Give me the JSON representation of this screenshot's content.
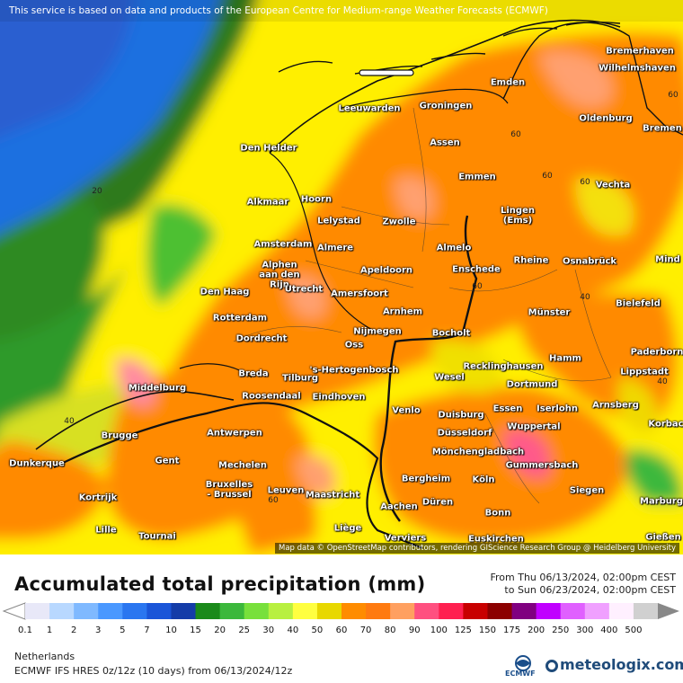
{
  "banner": "This service is based on data and products of the European Centre for Medium-range Weather Forecasts (ECMWF)",
  "attribution": "Map data © OpenStreetMap contributors, rendering GIScience Research Group @ Heidelberg University",
  "title": "Accumulated total precipitation (mm)",
  "date_from": "From Thu 06/13/2024, 02:00pm CEST",
  "date_to": "to Sun 06/23/2024, 02:00pm CEST",
  "region": "Netherlands",
  "model_line": "ECMWF IFS HRES 0z/12z (10 days) from 06/13/2024/12z",
  "logo_text": "meteologix.com",
  "ecmwf_text": "ECMWF",
  "legend": {
    "ticks": [
      "0.1",
      "1",
      "2",
      "3",
      "5",
      "7",
      "10",
      "15",
      "20",
      "25",
      "30",
      "40",
      "50",
      "60",
      "70",
      "80",
      "90",
      "100",
      "125",
      "150",
      "175",
      "200",
      "250",
      "300",
      "400",
      "500"
    ],
    "colors": [
      "#e8e8f8",
      "#b8d8ff",
      "#7fb9ff",
      "#4a98ff",
      "#2a76f0",
      "#1a55d8",
      "#143ca8",
      "#1a8a1a",
      "#3cb83c",
      "#78e03c",
      "#b8f040",
      "#ffff40",
      "#e8d800",
      "#ff8c00",
      "#ff7a10",
      "#ffa060",
      "#ff5080",
      "#ff2050",
      "#c80000",
      "#8c0000",
      "#800080",
      "#c000ff",
      "#e060ff",
      "#f0a0ff",
      "#fff0ff",
      "#d0d0d0"
    ]
  },
  "contour_labels": [
    "20",
    "40",
    "60",
    "60",
    "60",
    "60",
    "40",
    "40",
    "60",
    "60"
  ],
  "cities": [
    {
      "name": "Bremerhaven"
    },
    {
      "name": "Wilhelmshaven"
    },
    {
      "name": "Emden"
    },
    {
      "name": "Leeuwarden"
    },
    {
      "name": "Groningen"
    },
    {
      "name": "Oldenburg"
    },
    {
      "name": "Bremen"
    },
    {
      "name": "Den Helder"
    },
    {
      "name": "Assen"
    },
    {
      "name": "Emmen"
    },
    {
      "name": "Vechta"
    },
    {
      "name": "Alkmaar"
    },
    {
      "name": "Hoorn"
    },
    {
      "name": "Lelystad"
    },
    {
      "name": "Zwolle"
    },
    {
      "name": "Lingen\n(Ems)"
    },
    {
      "name": "Amsterdam"
    },
    {
      "name": "Almere"
    },
    {
      "name": "Almelo"
    },
    {
      "name": "Alphen\naan den\nRijn"
    },
    {
      "name": "Rheine"
    },
    {
      "name": "Osnabrück"
    },
    {
      "name": "Mind"
    },
    {
      "name": "Apeldoorn"
    },
    {
      "name": "Enschede"
    },
    {
      "name": "Den Haag"
    },
    {
      "name": "Utrecht"
    },
    {
      "name": "Amersfoort"
    },
    {
      "name": "Bielefeld"
    },
    {
      "name": "Rotterdam"
    },
    {
      "name": "Arnhem"
    },
    {
      "name": "Münster"
    },
    {
      "name": "Dordrecht"
    },
    {
      "name": "Nijmegen"
    },
    {
      "name": "Bocholt"
    },
    {
      "name": "Oss"
    },
    {
      "name": "Paderborn"
    },
    {
      "name": "Hamm"
    },
    {
      "name": "Recklinghausen"
    },
    {
      "name": "Breda"
    },
    {
      "name": "Tilburg"
    },
    {
      "name": "'s-Hertogenbosch"
    },
    {
      "name": "Wesel"
    },
    {
      "name": "Lippstadt"
    },
    {
      "name": "Middelburg"
    },
    {
      "name": "Dortmund"
    },
    {
      "name": "Roosendaal"
    },
    {
      "name": "Eindhoven"
    },
    {
      "name": "Essen"
    },
    {
      "name": "Iserlohn"
    },
    {
      "name": "Arnsberg"
    },
    {
      "name": "Venlo"
    },
    {
      "name": "Duisburg"
    },
    {
      "name": "Wuppertal"
    },
    {
      "name": "Korbac"
    },
    {
      "name": "Brugge"
    },
    {
      "name": "Antwerpen"
    },
    {
      "name": "Düsseldorf"
    },
    {
      "name": "Mönchengladbach"
    },
    {
      "name": "Dunkerque"
    },
    {
      "name": "Gent"
    },
    {
      "name": "Mechelen"
    },
    {
      "name": "Gummersbach"
    },
    {
      "name": "Bergheim"
    },
    {
      "name": "Bruxelles\n- Brussel"
    },
    {
      "name": "Köln"
    },
    {
      "name": "Leuven"
    },
    {
      "name": "Maastricht"
    },
    {
      "name": "Siegen"
    },
    {
      "name": "Kortrijk"
    },
    {
      "name": "Düren"
    },
    {
      "name": "Marburg"
    },
    {
      "name": "Aachen"
    },
    {
      "name": "Bonn"
    },
    {
      "name": "Liège"
    },
    {
      "name": "Lille"
    },
    {
      "name": "Tournai"
    },
    {
      "name": "Verviers"
    },
    {
      "name": "Euskirchen"
    },
    {
      "name": "Gießen"
    }
  ]
}
